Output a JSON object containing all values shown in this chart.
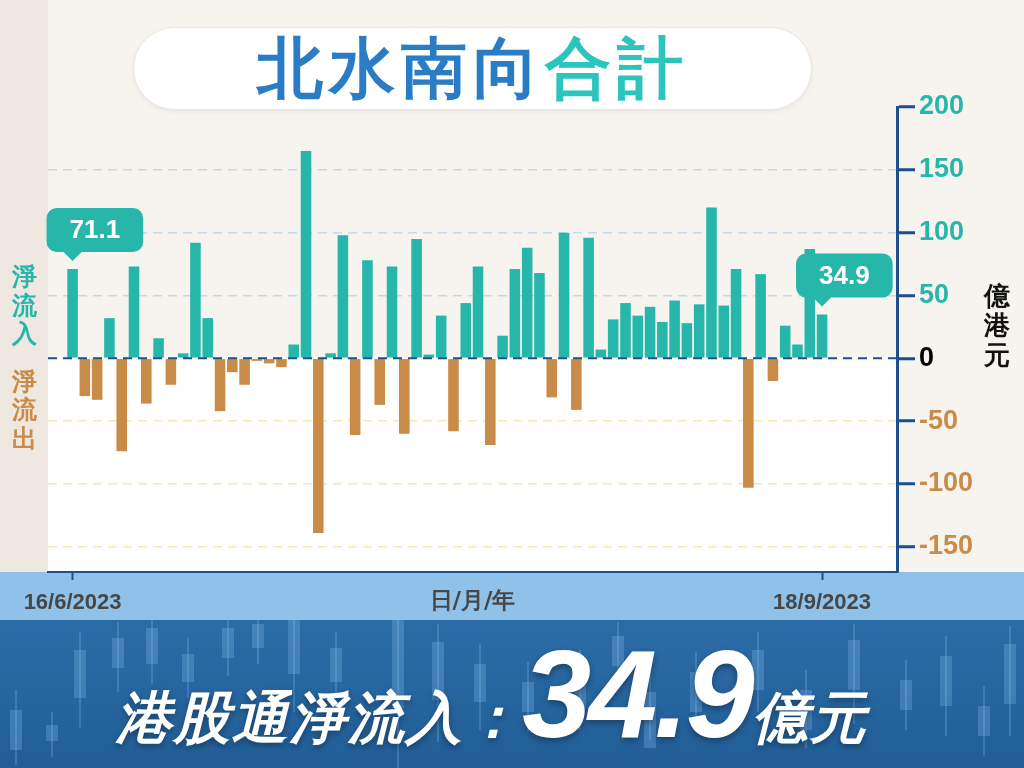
{
  "chart_data": {
    "type": "bar",
    "title": "北水南向合計",
    "xlabel": "日/月/年",
    "ylabel": "億港元",
    "annotations": [
      "港股通淨流入：34.9億元"
    ],
    "categories": [
      "16/6/2023",
      null,
      null,
      null,
      null,
      null,
      null,
      null,
      null,
      null,
      null,
      null,
      null,
      null,
      null,
      null,
      null,
      null,
      null,
      null,
      null,
      null,
      null,
      null,
      null,
      null,
      null,
      null,
      null,
      null,
      null,
      null,
      null,
      null,
      null,
      null,
      null,
      null,
      null,
      null,
      null,
      null,
      null,
      null,
      null,
      null,
      null,
      null,
      null,
      null,
      null,
      null,
      null,
      null,
      null,
      null,
      null,
      null,
      null,
      null,
      null,
      "18/9/2023"
    ],
    "series": [
      {
        "name": "淨流入",
        "color": "#27b7aa",
        "values": [
          71.1,
          null,
          null,
          32,
          null,
          73,
          null,
          16,
          null,
          4,
          92,
          32,
          null,
          null,
          null,
          null,
          null,
          null,
          11,
          165,
          null,
          4,
          98,
          null,
          78,
          null,
          73,
          null,
          95,
          3,
          34,
          null,
          44,
          73,
          null,
          18,
          71,
          88,
          68,
          null,
          100,
          null,
          96,
          7,
          31,
          44,
          34,
          41,
          29,
          46,
          28,
          43,
          120,
          42,
          71,
          null,
          67,
          null,
          26,
          11,
          87,
          34.9
        ],
        "value_labels": [
          "71.1",
          null,
          null,
          null,
          null,
          null,
          null,
          null,
          null,
          null,
          null,
          null,
          null,
          null,
          null,
          null,
          null,
          null,
          null,
          null,
          null,
          null,
          null,
          null,
          null,
          null,
          null,
          null,
          null,
          null,
          null,
          null,
          null,
          null,
          null,
          null,
          null,
          null,
          null,
          null,
          null,
          null,
          null,
          null,
          null,
          null,
          null,
          null,
          null,
          null,
          null,
          null,
          null,
          null,
          null,
          null,
          null,
          null,
          null,
          null,
          null,
          "34.9"
        ]
      },
      {
        "name": "淨流出",
        "color": "#c98b48",
        "values": [
          null,
          -30,
          -33,
          null,
          -74,
          null,
          -36,
          null,
          -21,
          null,
          null,
          null,
          -42,
          -11,
          -21,
          -2,
          -4,
          -7,
          null,
          null,
          -139,
          null,
          null,
          -61,
          null,
          -37,
          null,
          -60,
          null,
          null,
          null,
          -58,
          null,
          null,
          -69,
          null,
          null,
          null,
          null,
          -31,
          null,
          -41,
          null,
          null,
          null,
          null,
          null,
          null,
          null,
          null,
          null,
          null,
          null,
          null,
          null,
          -103,
          null,
          -18,
          null,
          null,
          null,
          null
        ]
      }
    ],
    "ref_lines": [
      {
        "axis": "y",
        "value": 0,
        "color": "#1d4f8c",
        "line_style": "dashed"
      }
    ],
    "ylim": [
      -170,
      200
    ],
    "yticks": [
      -150,
      -100,
      -50,
      0,
      50,
      100,
      150,
      200
    ],
    "grid": "y",
    "legend": "left"
  }
}
